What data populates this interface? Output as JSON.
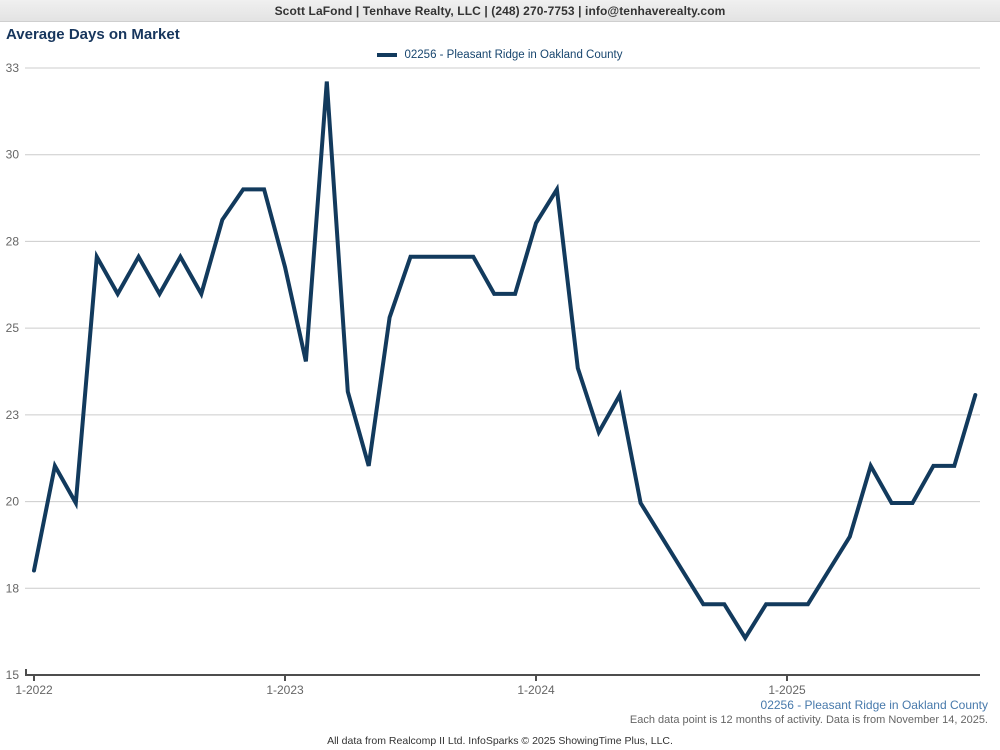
{
  "header": {
    "contact": "Scott LaFond | Tenhave Realty, LLC | (248) 270-7753 | info@tenhaverealty.com"
  },
  "title": "Average Days on Market",
  "legend": {
    "label": "02256 - Pleasant Ridge in Oakland County"
  },
  "footer": {
    "series_label": "02256 - Pleasant Ridge in Oakland County",
    "note": "Each data point is 12 months of activity. Data is from November 14, 2025.",
    "attribution": "All data from Realcomp II Ltd. InfoSparks © 2025 ShowingTime Plus, LLC."
  },
  "colors": {
    "line": "#123a5d",
    "title": "#17365d",
    "legend_text": "#17456e",
    "grid": "#cccccc",
    "axis": "#4d4d4d",
    "tick_label": "#666666",
    "series_label_blue": "#4779ab",
    "note_gray": "#666666",
    "attribution_gray": "#333333"
  },
  "chart_data": {
    "type": "line",
    "title": "Average Days on Market",
    "legend_position": "top-center",
    "grid": "horizontal",
    "ylim": [
      15,
      33
    ],
    "y_tick_labels": [
      "33",
      "30",
      "28",
      "25",
      "23",
      "20",
      "18",
      "15"
    ],
    "x_tick_labels": [
      "1-2022",
      "1-2023",
      "1-2024",
      "1-2025"
    ],
    "x_tick_month_indices": [
      0,
      12,
      24,
      36
    ],
    "x": [
      "1-2022",
      "2-2022",
      "3-2022",
      "4-2022",
      "5-2022",
      "6-2022",
      "7-2022",
      "8-2022",
      "9-2022",
      "10-2022",
      "11-2022",
      "12-2022",
      "1-2023",
      "2-2023",
      "3-2023",
      "4-2023",
      "5-2023",
      "6-2023",
      "7-2023",
      "8-2023",
      "9-2023",
      "10-2023",
      "11-2023",
      "12-2023",
      "1-2024",
      "2-2024",
      "3-2024",
      "4-2024",
      "5-2024",
      "6-2024",
      "7-2024",
      "8-2024",
      "9-2024",
      "10-2024",
      "11-2024",
      "12-2024",
      "1-2025",
      "2-2025",
      "3-2025",
      "4-2025",
      "5-2025",
      "6-2025",
      "7-2025",
      "8-2025",
      "9-2025",
      "10-2025"
    ],
    "series": [
      {
        "name": "02256 - Pleasant Ridge in Oakland County",
        "values": [
          18.1,
          21.2,
          20.1,
          27.4,
          26.3,
          27.4,
          26.3,
          27.4,
          26.3,
          28.5,
          29.4,
          29.4,
          27.1,
          24.3,
          32.6,
          23.4,
          21.2,
          25.6,
          27.4,
          27.4,
          27.4,
          27.4,
          26.3,
          26.3,
          28.4,
          29.4,
          24.1,
          22.2,
          23.3,
          20.1,
          19.1,
          18.1,
          17.1,
          17.1,
          16.1,
          17.1,
          17.1,
          17.1,
          18.1,
          19.1,
          21.2,
          20.1,
          20.1,
          21.2,
          21.2,
          23.3
        ]
      }
    ]
  }
}
